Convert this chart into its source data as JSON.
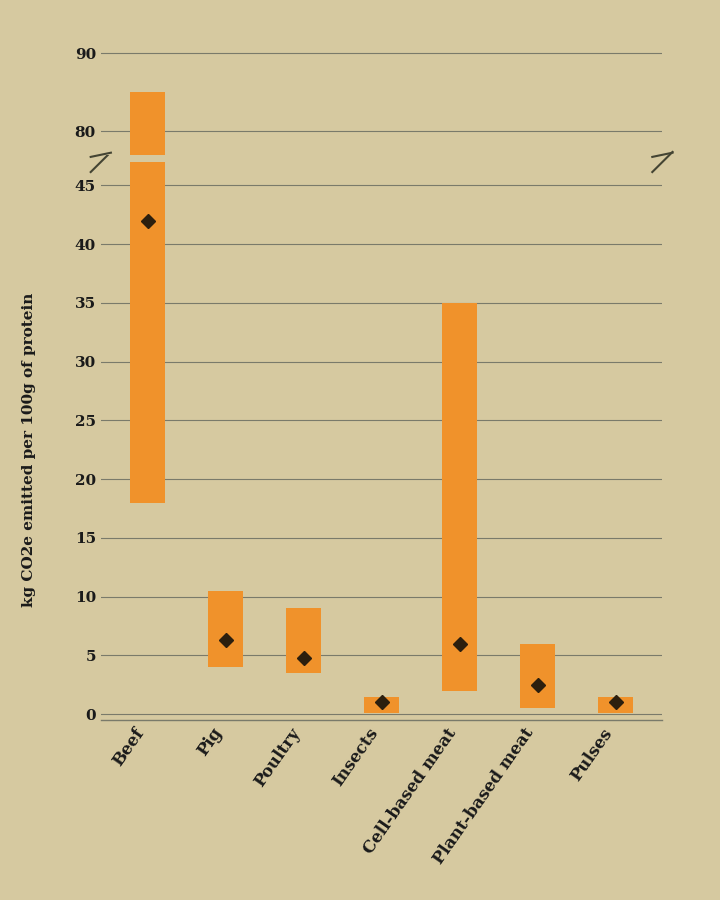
{
  "categories": [
    "Beef",
    "Pig",
    "Poultry",
    "Insects",
    "Cell-based meat",
    "Plant-based meat",
    "Pulses"
  ],
  "range_low": [
    18,
    4.0,
    3.5,
    0.1,
    2.0,
    0.5,
    0.1
  ],
  "range_high": [
    85,
    10.5,
    9.0,
    1.5,
    35.0,
    6.0,
    1.5
  ],
  "median": [
    42,
    6.3,
    4.8,
    1.0,
    6.0,
    2.5,
    1.0
  ],
  "bar_color": "#F0922B",
  "median_color": "#2C1F0E",
  "background_color": "#D6C9A0",
  "text_color": "#1a1a1a",
  "grid_color": "#7a7a6a",
  "ylabel": "kg CO2e emitted per 100g of protein",
  "yticks_lower": [
    0,
    5,
    10,
    15,
    20,
    25,
    30,
    35,
    40,
    45
  ],
  "yticks_upper": [
    80,
    90
  ],
  "break_low": 47,
  "break_high": 77,
  "bar_width": 0.45,
  "label_fontsize": 12,
  "tick_fontsize": 11,
  "ylabel_fontsize": 11
}
